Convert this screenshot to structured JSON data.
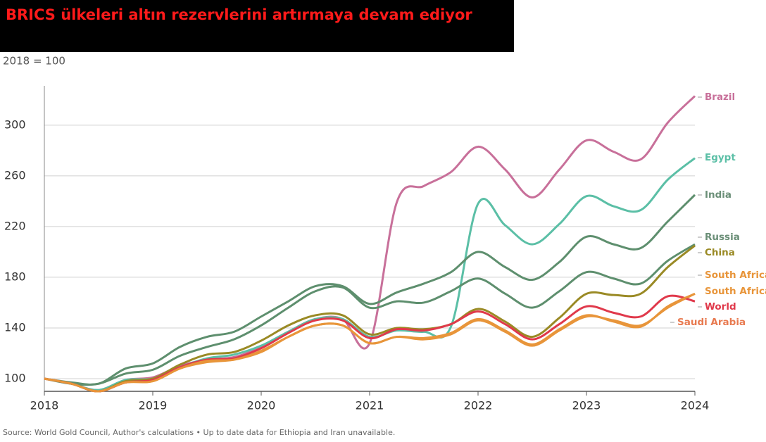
{
  "chart_data": {
    "type": "line",
    "title": "BRICS ülkeleri altın rezervlerini artırmaya devam ediyor",
    "subtitle": "2018 = 100",
    "source": "Source: World Gold Council, Author's calculations • Up to date data for Ethiopia and Iran unavailable.",
    "x": [
      2018,
      2018.25,
      2018.5,
      2018.75,
      2019,
      2019.25,
      2019.5,
      2019.75,
      2020,
      2020.25,
      2020.5,
      2020.75,
      2021,
      2021.25,
      2021.5,
      2021.75,
      2022,
      2022.25,
      2022.5,
      2022.75,
      2023,
      2023.25,
      2023.5,
      2023.75,
      2024
    ],
    "xlim": [
      2018,
      2024
    ],
    "xticks": [
      2018,
      2019,
      2020,
      2021,
      2022,
      2023,
      2024
    ],
    "ylim": [
      90,
      331
    ],
    "yticks": [
      100,
      140,
      180,
      220,
      260,
      300
    ],
    "grid": true,
    "series": [
      {
        "name": "Brazil",
        "color": "#c8709a",
        "values": [
          100,
          96,
          91,
          99,
          101,
          110,
          115,
          117,
          125,
          137,
          147,
          147,
          128,
          239,
          252,
          263,
          283,
          265,
          243,
          265,
          288,
          279,
          273,
          302,
          323
        ]
      },
      {
        "name": "Egypt",
        "color": "#5bbfa6",
        "values": [
          100,
          96,
          91,
          99,
          100,
          109,
          116,
          119,
          126,
          137,
          147,
          147,
          133,
          138,
          137,
          141,
          238,
          221,
          206,
          222,
          244,
          236,
          233,
          257,
          274
        ]
      },
      {
        "name": "India",
        "color": "#5e8f6e",
        "values": [
          100,
          97,
          96,
          108,
          112,
          125,
          133,
          137,
          149,
          161,
          173,
          173,
          159,
          168,
          175,
          184,
          200,
          188,
          178,
          192,
          212,
          206,
          203,
          224,
          245
        ]
      },
      {
        "name": "Russia",
        "color": "#5e8f6e",
        "values": [
          100,
          96,
          96,
          104,
          107,
          118,
          125,
          131,
          142,
          156,
          169,
          172,
          156,
          161,
          160,
          169,
          179,
          167,
          156,
          169,
          184,
          179,
          175,
          193,
          206
        ]
      },
      {
        "name": "China",
        "color": "#9a8a25",
        "values": [
          100,
          96,
          90,
          98,
          100,
          111,
          119,
          121,
          130,
          142,
          150,
          150,
          135,
          140,
          139,
          143,
          155,
          145,
          133,
          148,
          167,
          166,
          167,
          188,
          205
        ]
      },
      {
        "name": "South Africa",
        "color": "#e8953a",
        "values": [
          100,
          96,
          90,
          97,
          98,
          108,
          113,
          115,
          121,
          133,
          142,
          142,
          128,
          133,
          131,
          135,
          146,
          137,
          126,
          138,
          149,
          146,
          142,
          156,
          167
        ]
      },
      {
        "name": "World",
        "color": "#e0394b",
        "values": [
          100,
          96,
          90,
          97,
          99,
          109,
          115,
          116,
          124,
          136,
          146,
          146,
          132,
          139,
          138,
          143,
          153,
          143,
          131,
          143,
          157,
          152,
          149,
          165,
          161
        ]
      },
      {
        "name": "Saudi Arabia",
        "color": "#e8953a",
        "values": [
          100,
          96,
          90,
          97,
          98,
          108,
          114,
          115,
          122,
          133,
          142,
          142,
          128,
          133,
          132,
          136,
          147,
          138,
          127,
          139,
          150,
          145,
          141,
          157,
          167
        ]
      }
    ],
    "annotations": [
      "South Africa"
    ]
  }
}
